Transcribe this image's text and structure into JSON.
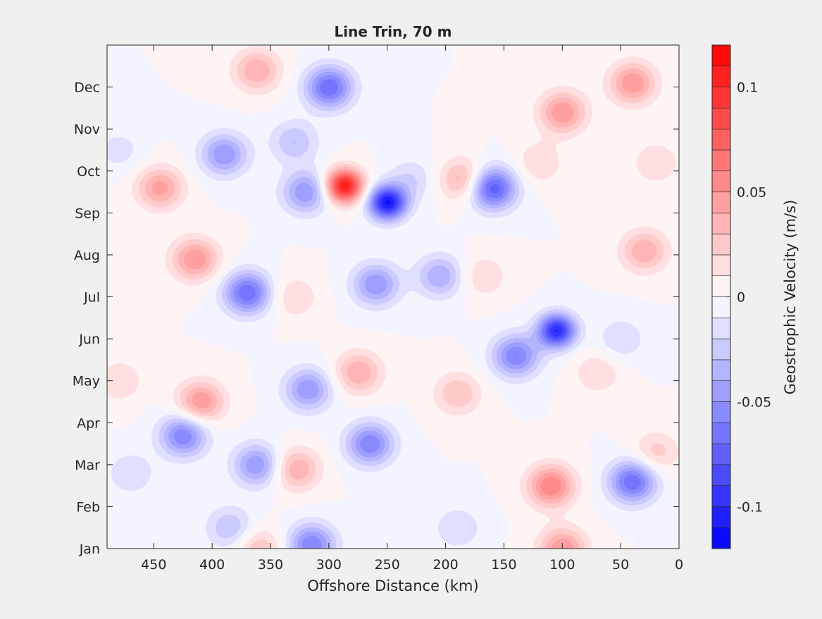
{
  "chart_data": {
    "type": "heatmap",
    "subtype": "filled-contour",
    "title": "Line Trin, 70 m",
    "xlabel": "Offshore Distance (km)",
    "ylabel": "",
    "x_reversed": true,
    "xlim": [
      490,
      0
    ],
    "xticks": [
      450,
      400,
      350,
      300,
      250,
      200,
      150,
      100,
      50,
      0
    ],
    "yticks": [
      "Jan",
      "Feb",
      "Mar",
      "Apr",
      "May",
      "Jun",
      "Jul",
      "Aug",
      "Sep",
      "Oct",
      "Nov",
      "Dec"
    ],
    "ylim_months": [
      1,
      13
    ],
    "colorbar": {
      "label": "Geostrophic Velocity (m/s)",
      "range": [
        -0.12,
        0.12
      ],
      "ticks": [
        -0.1,
        -0.05,
        0,
        0.05,
        0.1
      ],
      "levels": 24,
      "colormap": "blue-white-red",
      "negative_color": "#0000ff",
      "positive_color": "#ff0000",
      "zero_color": "#ffffff"
    },
    "features": [
      {
        "x": 287,
        "month": 9.65,
        "value": 0.11
      },
      {
        "x": 250,
        "month": 9.25,
        "value": -0.11
      },
      {
        "x": 300,
        "month": 12.0,
        "value": -0.07
      },
      {
        "x": 362,
        "month": 12.4,
        "value": 0.04
      },
      {
        "x": 445,
        "month": 9.6,
        "value": 0.045
      },
      {
        "x": 390,
        "month": 10.4,
        "value": -0.05
      },
      {
        "x": 415,
        "month": 7.9,
        "value": 0.05
      },
      {
        "x": 370,
        "month": 7.1,
        "value": -0.07
      },
      {
        "x": 320,
        "month": 9.5,
        "value": -0.05
      },
      {
        "x": 330,
        "month": 7.0,
        "value": 0.02
      },
      {
        "x": 185,
        "month": 9.8,
        "value": 0.04
      },
      {
        "x": 160,
        "month": 9.6,
        "value": -0.08
      },
      {
        "x": 205,
        "month": 7.5,
        "value": -0.04
      },
      {
        "x": 168,
        "month": 7.5,
        "value": 0.02
      },
      {
        "x": 105,
        "month": 6.2,
        "value": -0.1
      },
      {
        "x": 140,
        "month": 5.6,
        "value": -0.06
      },
      {
        "x": 40,
        "month": 12.1,
        "value": 0.05
      },
      {
        "x": 100,
        "month": 11.4,
        "value": 0.05
      },
      {
        "x": 30,
        "month": 8.1,
        "value": 0.04
      },
      {
        "x": 120,
        "month": 10.2,
        "value": 0.02
      },
      {
        "x": 50,
        "month": 6.0,
        "value": -0.02
      },
      {
        "x": 70,
        "month": 5.2,
        "value": 0.02
      },
      {
        "x": 190,
        "month": 4.7,
        "value": 0.03
      },
      {
        "x": 410,
        "month": 4.5,
        "value": 0.05
      },
      {
        "x": 425,
        "month": 3.7,
        "value": -0.06
      },
      {
        "x": 275,
        "month": 5.2,
        "value": 0.04
      },
      {
        "x": 318,
        "month": 4.8,
        "value": -0.05
      },
      {
        "x": 265,
        "month": 3.5,
        "value": -0.06
      },
      {
        "x": 328,
        "month": 2.9,
        "value": 0.04
      },
      {
        "x": 362,
        "month": 3.0,
        "value": -0.05
      },
      {
        "x": 110,
        "month": 2.5,
        "value": 0.06
      },
      {
        "x": 40,
        "month": 2.6,
        "value": -0.07
      },
      {
        "x": 315,
        "month": 1.1,
        "value": -0.06
      },
      {
        "x": 360,
        "month": 1.0,
        "value": 0.03
      },
      {
        "x": 100,
        "month": 1.0,
        "value": 0.05
      },
      {
        "x": 470,
        "month": 2.8,
        "value": -0.02
      },
      {
        "x": 480,
        "month": 5.0,
        "value": 0.02
      },
      {
        "x": 480,
        "month": 10.5,
        "value": -0.015
      },
      {
        "x": 385,
        "month": 1.5,
        "value": -0.03
      },
      {
        "x": 330,
        "month": 10.7,
        "value": -0.03
      },
      {
        "x": 260,
        "month": 7.3,
        "value": -0.05
      },
      {
        "x": 20,
        "month": 10.2,
        "value": 0.02
      },
      {
        "x": 20,
        "month": 3.3,
        "value": 0.025
      },
      {
        "x": 190,
        "month": 1.5,
        "value": -0.02
      },
      {
        "x": 230,
        "month": 9.8,
        "value": -0.02
      }
    ]
  }
}
